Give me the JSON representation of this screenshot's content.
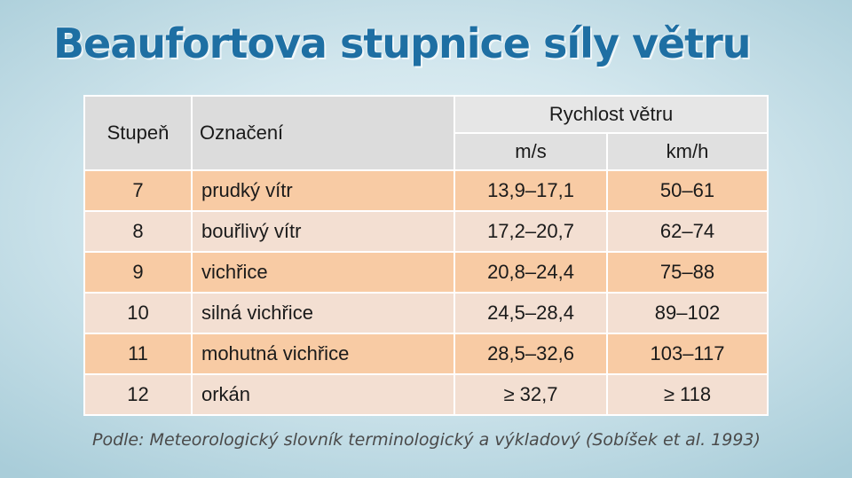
{
  "title": "Beaufortova stupnice síly větru",
  "table": {
    "headers": {
      "stupen": "Stupeň",
      "oznaceni": "Označení",
      "rychlost": "Rychlost větru",
      "ms": "m/s",
      "kmh": "km/h"
    },
    "rows": [
      {
        "stupen": "7",
        "oznaceni": "prudký vítr",
        "ms": "13,9–17,1",
        "kmh": "50–61"
      },
      {
        "stupen": "8",
        "oznaceni": "bouřlivý vítr",
        "ms": "17,2–20,7",
        "kmh": "62–74"
      },
      {
        "stupen": "9",
        "oznaceni": "vichřice",
        "ms": "20,8–24,4",
        "kmh": "75–88"
      },
      {
        "stupen": "10",
        "oznaceni": "silná vichřice",
        "ms": "24,5–28,4",
        "kmh": "89–102"
      },
      {
        "stupen": "11",
        "oznaceni": "mohutná vichřice",
        "ms": "28,5–32,6",
        "kmh": "103–117"
      },
      {
        "stupen": "12",
        "oznaceni": "orkán",
        "ms": "≥ 32,7",
        "kmh": "≥ 118"
      }
    ]
  },
  "source": "Podle: Meteorologický slovník terminologický a výkladový (Sobíšek et al. 1993)",
  "colors": {
    "title": "#1e6fa3",
    "row_strong": "#f8cba4",
    "row_light": "#f3dfd2",
    "header": "#e6e6e6"
  }
}
